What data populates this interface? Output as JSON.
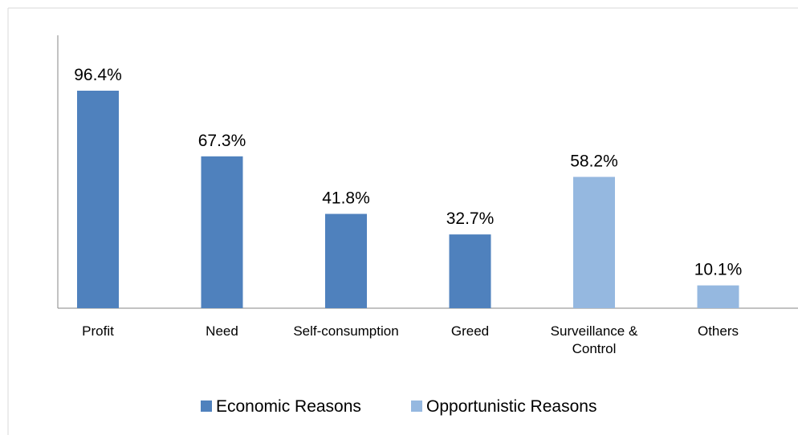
{
  "chart_data": {
    "type": "bar",
    "categories": [
      "Profit",
      "Need",
      "Self-consumption",
      "Greed",
      "Surveillance & Control",
      "Others"
    ],
    "values": [
      96.4,
      67.3,
      41.8,
      32.7,
      58.2,
      10.1
    ],
    "value_labels": [
      "96.4%",
      "67.3%",
      "41.8%",
      "32.7%",
      "58.2%",
      "10.1%"
    ],
    "point_series": [
      0,
      0,
      0,
      0,
      1,
      1
    ],
    "series": [
      {
        "name": "Economic Reasons",
        "color": "#4f81bd",
        "categories": [
          "Profit",
          "Need",
          "Self-consumption",
          "Greed"
        ]
      },
      {
        "name": "Opportunistic Reasons",
        "color": "#95b8e0",
        "categories": [
          "Surveillance & Control",
          "Others"
        ]
      }
    ],
    "unit": "%",
    "ylim": [
      0,
      100
    ],
    "grid": false,
    "legend_position": "bottom",
    "title": "",
    "xlabel": "",
    "ylabel": ""
  }
}
